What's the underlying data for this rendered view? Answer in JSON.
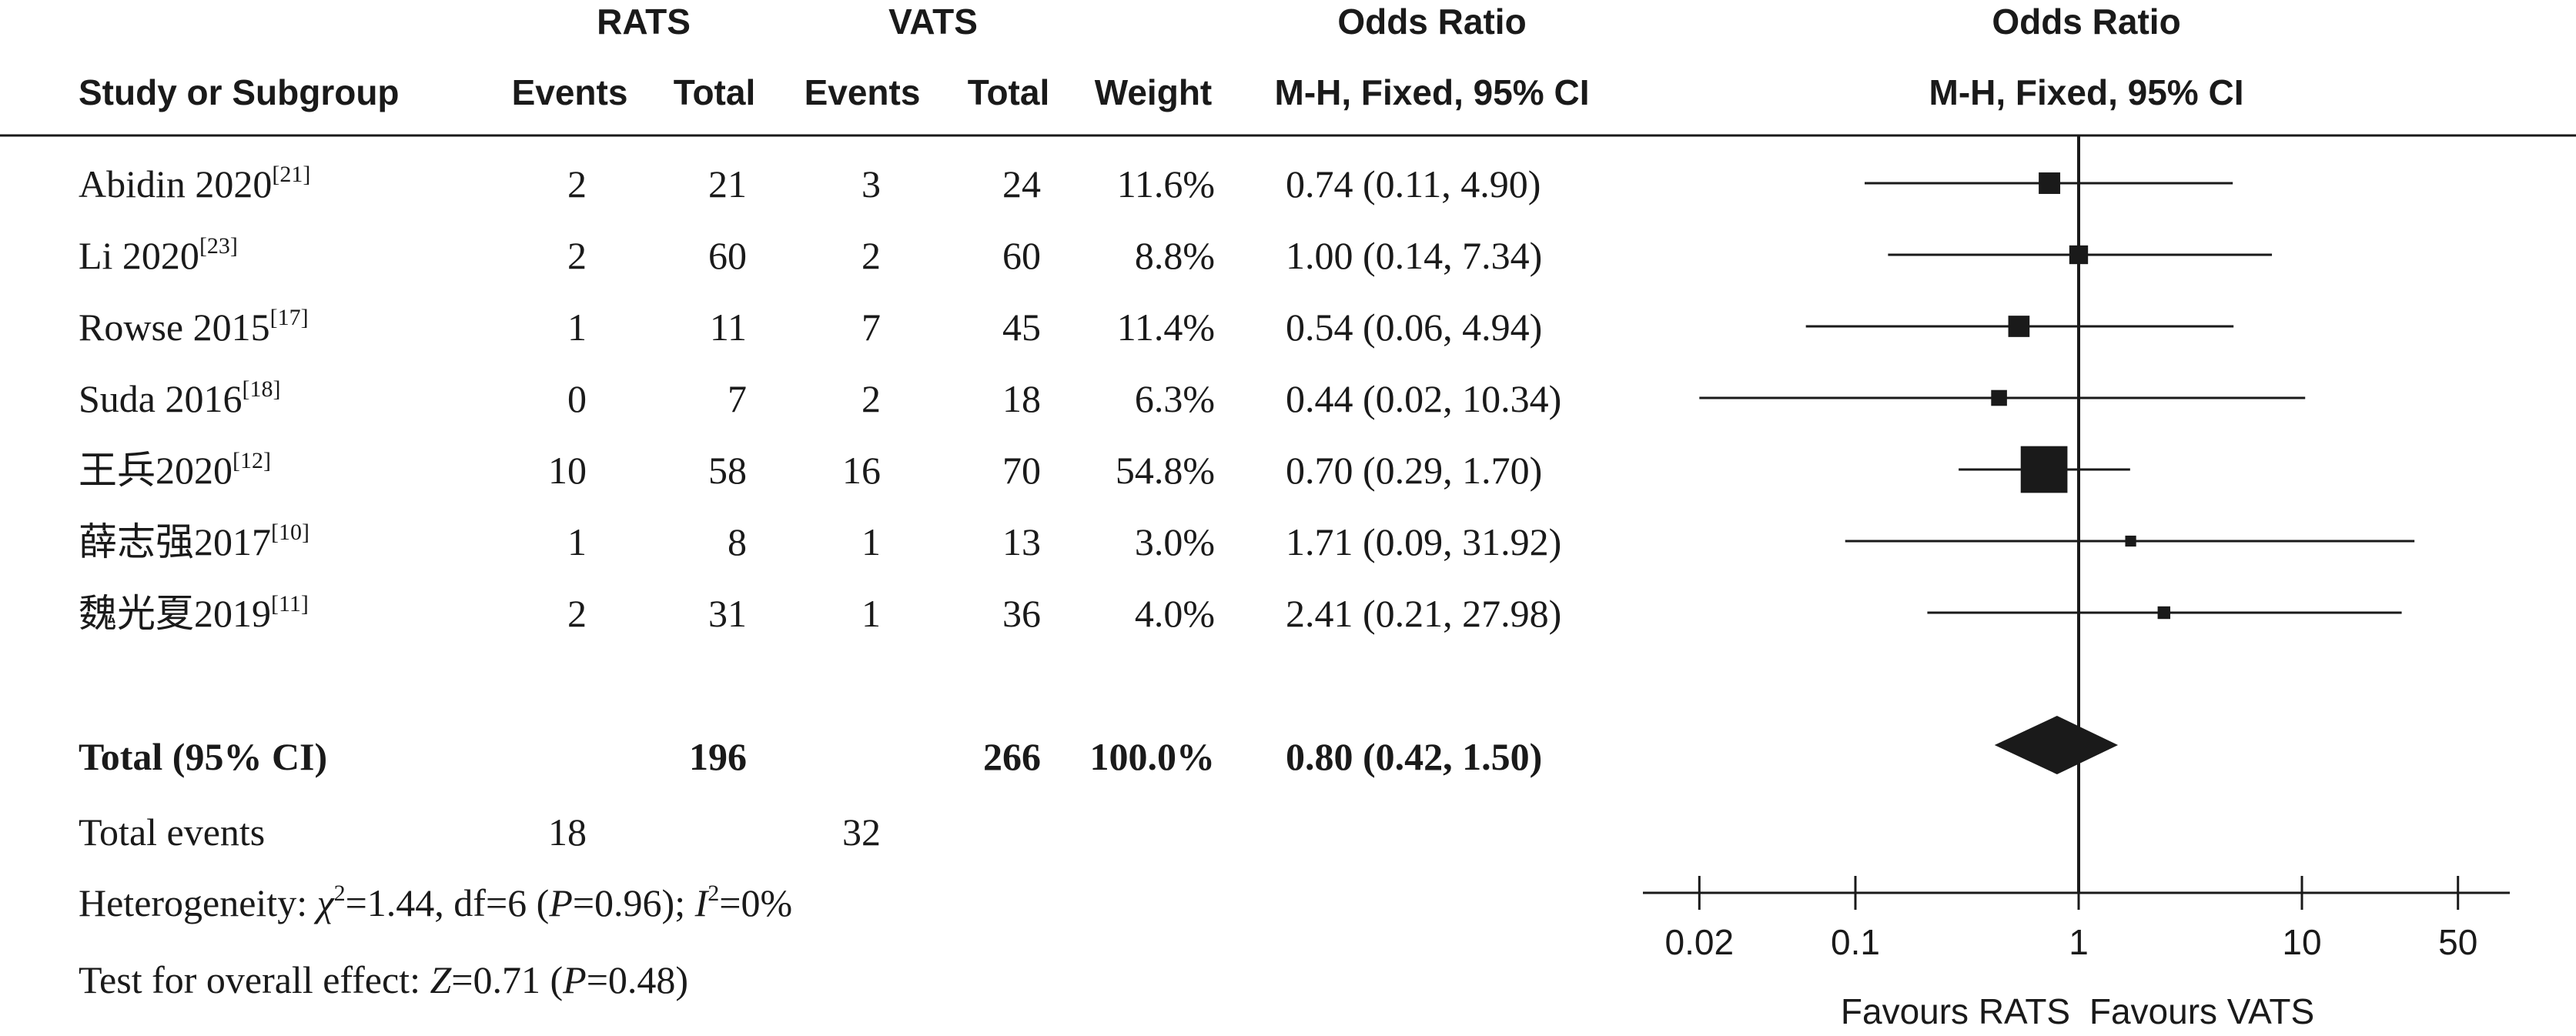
{
  "headers": {
    "group1": "RATS",
    "group2": "VATS",
    "study": "Study or Subgroup",
    "events": "Events",
    "total": "Total",
    "weight": "Weight",
    "or_title": "Odds Ratio",
    "or_method": "M-H, Fixed, 95% CI",
    "plot_title": "Odds Ratio",
    "plot_method": "M-H, Fixed, 95% CI"
  },
  "summary": {
    "total_label": "Total (95% CI)",
    "rats_total": "196",
    "vats_total": "266",
    "weight_total": "100.0%",
    "or_text": "0.80 (0.42, 1.50)",
    "events_label": "Total events",
    "rats_events": "18",
    "vats_events": "32",
    "het_prefix": "Heterogeneity: ",
    "het_chi": "χ",
    "het_chi_sup": "2",
    "het_mid": "=1.44, df=6 (",
    "het_p": "P",
    "het_pval": "=0.96); ",
    "het_i": "I",
    "het_i_sup": "2",
    "het_end": "=0%",
    "test_prefix": "Test for overall effect: ",
    "test_z": "Z",
    "test_mid": "=0.71 (",
    "test_p": "P",
    "test_end": "=0.48)"
  },
  "axis_labels": {
    "favours_left": "Favours RATS",
    "favours_right": "Favours VATS"
  },
  "chart_data": {
    "type": "forest",
    "scale": "log",
    "xlim": [
      0.02,
      50
    ],
    "xticks": [
      0.02,
      0.1,
      1,
      10,
      50
    ],
    "xtick_labels": [
      "0.02",
      "0.1",
      "1",
      "10",
      "50"
    ],
    "reference_line": 1,
    "studies": [
      {
        "name": "Abidin 2020",
        "ref": "[21]",
        "rats_events": 2,
        "rats_total": 21,
        "vats_events": 3,
        "vats_total": 24,
        "weight": 11.6,
        "weight_text": "11.6%",
        "or": 0.74,
        "lo": 0.11,
        "hi": 4.9,
        "or_text": "0.74 (0.11, 4.90)"
      },
      {
        "name": "Li 2020",
        "ref": "[23]",
        "rats_events": 2,
        "rats_total": 60,
        "vats_events": 2,
        "vats_total": 60,
        "weight": 8.8,
        "weight_text": "8.8%",
        "or": 1.0,
        "lo": 0.14,
        "hi": 7.34,
        "or_text": "1.00 (0.14, 7.34)"
      },
      {
        "name": "Rowse 2015",
        "ref": "[17]",
        "rats_events": 1,
        "rats_total": 11,
        "vats_events": 7,
        "vats_total": 45,
        "weight": 11.4,
        "weight_text": "11.4%",
        "or": 0.54,
        "lo": 0.06,
        "hi": 4.94,
        "or_text": "0.54 (0.06, 4.94)"
      },
      {
        "name": "Suda 2016",
        "ref": "[18]",
        "rats_events": 0,
        "rats_total": 7,
        "vats_events": 2,
        "vats_total": 18,
        "weight": 6.3,
        "weight_text": "6.3%",
        "or": 0.44,
        "lo": 0.02,
        "hi": 10.34,
        "or_text": "0.44 (0.02, 10.34)"
      },
      {
        "name": "王兵2020",
        "ref": "[12]",
        "rats_events": 10,
        "rats_total": 58,
        "vats_events": 16,
        "vats_total": 70,
        "weight": 54.8,
        "weight_text": "54.8%",
        "or": 0.7,
        "lo": 0.29,
        "hi": 1.7,
        "or_text": "0.70 (0.29, 1.70)"
      },
      {
        "name": "薛志强2017",
        "ref": "[10]",
        "rats_events": 1,
        "rats_total": 8,
        "vats_events": 1,
        "vats_total": 13,
        "weight": 3.0,
        "weight_text": "3.0%",
        "or": 1.71,
        "lo": 0.09,
        "hi": 31.92,
        "or_text": "1.71 (0.09, 31.92)"
      },
      {
        "name": "魏光夏2019",
        "ref": "[11]",
        "rats_events": 2,
        "rats_total": 31,
        "vats_events": 1,
        "vats_total": 36,
        "weight": 4.0,
        "weight_text": "4.0%",
        "or": 2.41,
        "lo": 0.21,
        "hi": 27.98,
        "or_text": "2.41 (0.21, 27.98)"
      }
    ],
    "pooled": {
      "or": 0.8,
      "lo": 0.42,
      "hi": 1.5
    },
    "colors": {
      "ink": "#1a1a1a"
    }
  }
}
